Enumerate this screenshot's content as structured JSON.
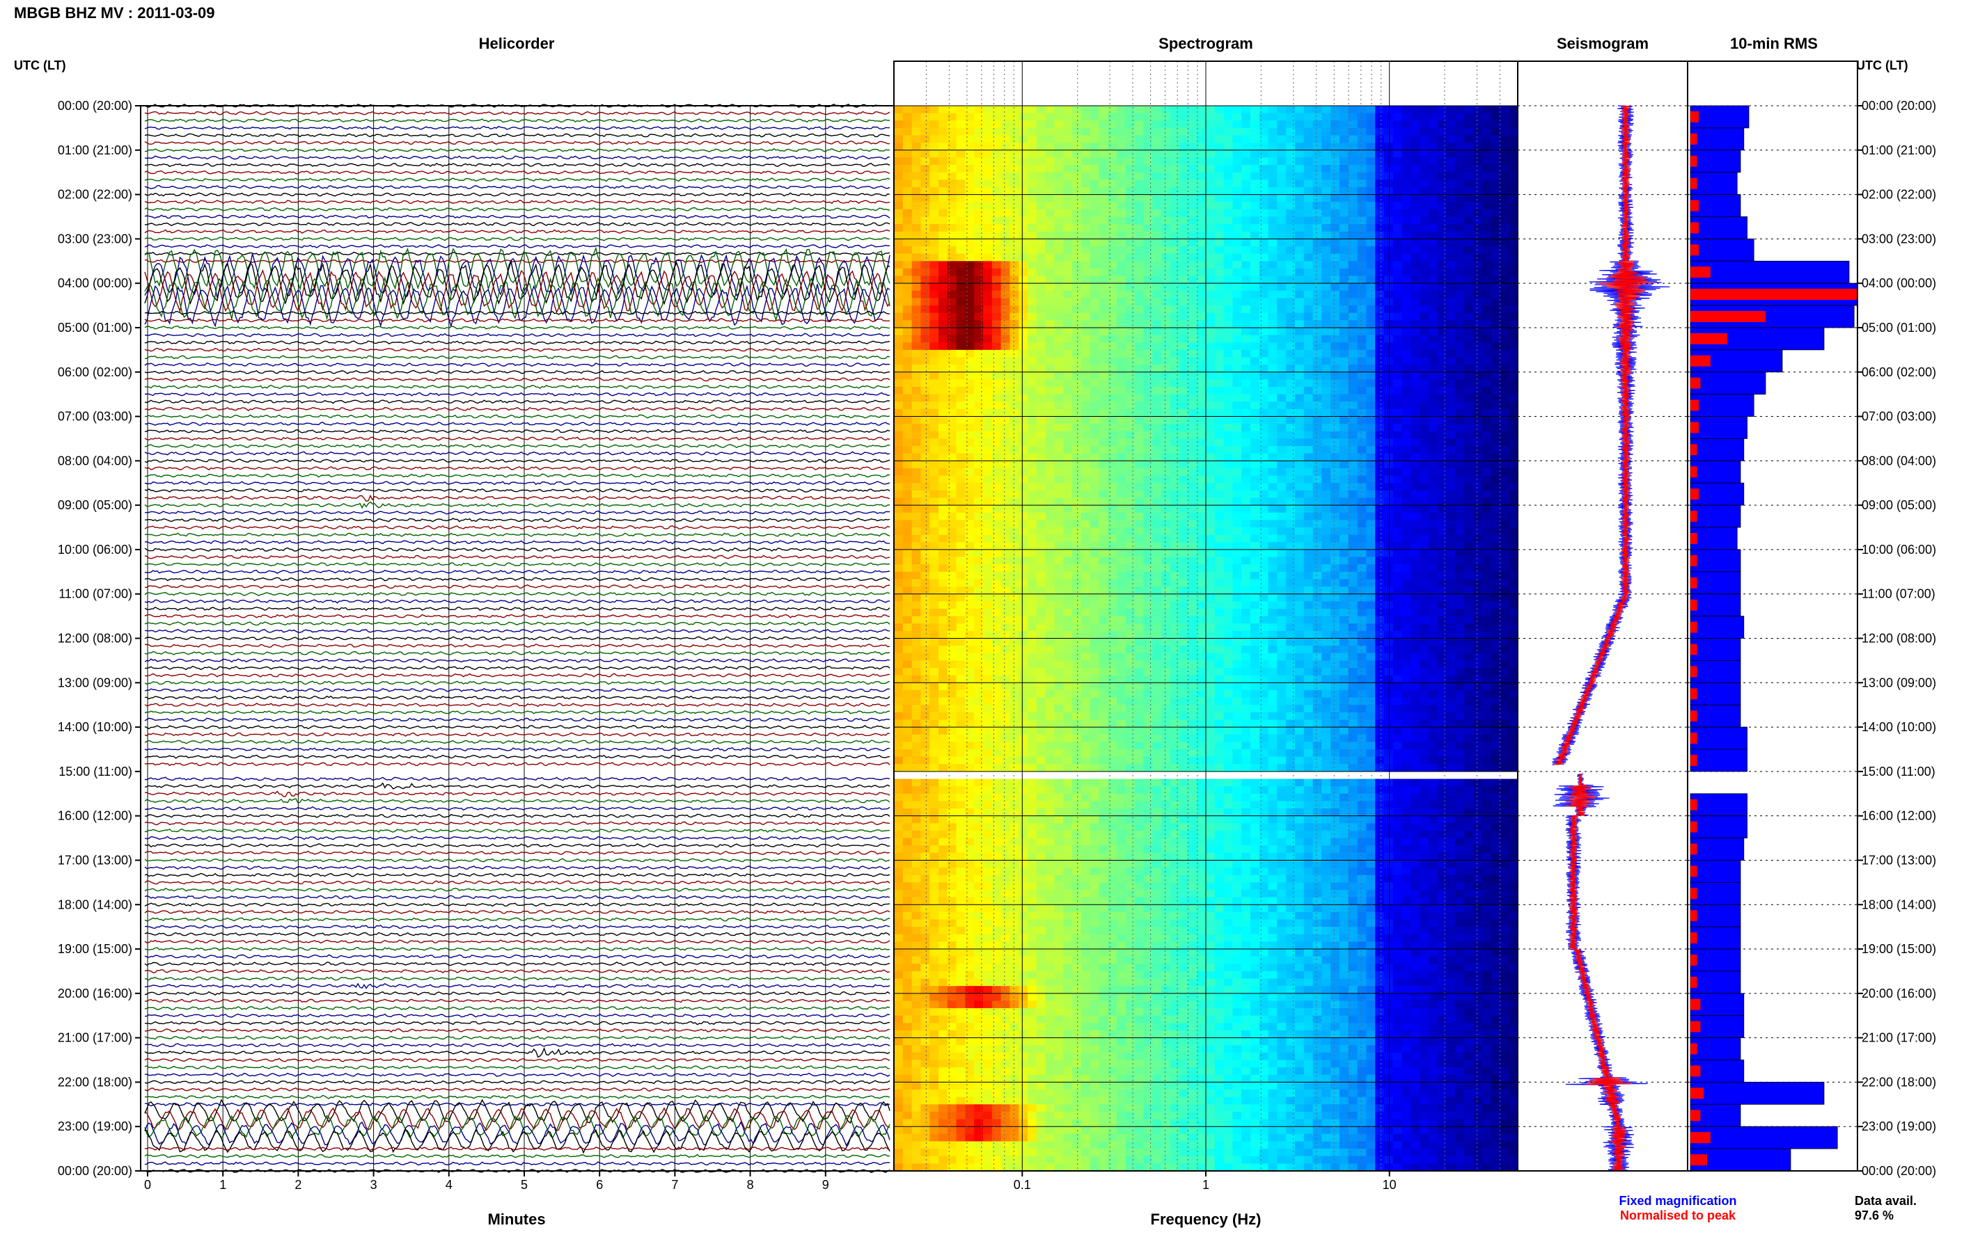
{
  "figure": {
    "title": "MBGB BHZ MV : 2011-03-09",
    "utc_label_left": "UTC (LT)",
    "utc_label_right": "UTC (LT)",
    "panels": {
      "helicorder": "Helicorder",
      "spectrogram": "Spectrogram",
      "seismogram": "Seismogram",
      "rms": "10-min RMS"
    },
    "xlabels": {
      "helicorder": "Minutes",
      "spectrogram": "Frequency (Hz)"
    },
    "legend": {
      "fixed": "Fixed magnification",
      "normalised": "Normalised to peak"
    },
    "data_avail_label": "Data avail.",
    "data_avail_value": "97.6 %",
    "colors": {
      "helicorder_traces": [
        "#000000",
        "#8b0000",
        "#006400",
        "#00008b"
      ],
      "fixed": "#0000ff",
      "normalised": "#ff0000",
      "gap": "#ffffff"
    }
  },
  "chart_data": [
    {
      "type": "line",
      "name": "Helicorder",
      "xlabel": "Minutes",
      "x_ticks": [
        "0",
        "1",
        "2",
        "3",
        "4",
        "5",
        "6",
        "7",
        "8",
        "9"
      ],
      "xlim": [
        0,
        10
      ],
      "y_ticks": [
        "00:00 (20:00)",
        "01:00 (21:00)",
        "02:00 (22:00)",
        "03:00 (23:00)",
        "04:00 (00:00)",
        "05:00 (01:00)",
        "06:00 (02:00)",
        "07:00 (03:00)",
        "08:00 (04:00)",
        "09:00 (05:00)",
        "10:00 (06:00)",
        "11:00 (07:00)",
        "12:00 (08:00)",
        "13:00 (09:00)",
        "14:00 (10:00)",
        "15:00 (11:00)",
        "16:00 (12:00)",
        "17:00 (13:00)",
        "18:00 (14:00)",
        "19:00 (15:00)",
        "20:00 (16:00)",
        "21:00 (17:00)",
        "22:00 (18:00)",
        "23:00 (19:00)",
        "00:00 (20:00)"
      ],
      "lines_per_hour": 6,
      "events": [
        {
          "hour": 3.6,
          "duration_h": 1.0,
          "level": "strong"
        },
        {
          "hour": 8.9,
          "minute": 2.9,
          "level": "small"
        },
        {
          "hour": 15.3,
          "minute": 3.2,
          "level": "small"
        },
        {
          "hour": 15.6,
          "minute": 1.8,
          "level": "small"
        },
        {
          "hour": 19.9,
          "minute": 2.8,
          "level": "small"
        },
        {
          "hour": 21.4,
          "minute": 5.2,
          "level": "moderate"
        },
        {
          "hour": 22.6,
          "duration_h": 0.8,
          "level": "moderate"
        }
      ],
      "gaps": [
        {
          "hour_start": 14.85,
          "hour_end": 15.05
        }
      ]
    },
    {
      "type": "heatmap",
      "name": "Spectrogram",
      "xlabel": "Frequency (Hz)",
      "x_scale": "log",
      "xlim": [
        0.02,
        50
      ],
      "x_ticks": [
        "0.1",
        "1",
        "10"
      ],
      "colormap": "jet",
      "hot_spots": [
        {
          "hour_start": 3.4,
          "hour_end": 5.4,
          "freq_hz": 0.05,
          "intensity": "max"
        },
        {
          "hour_start": 19.7,
          "hour_end": 20.3,
          "freq_hz": 0.06,
          "intensity": "high"
        },
        {
          "hour_start": 22.5,
          "hour_end": 23.2,
          "freq_hz": 0.06,
          "intensity": "high"
        }
      ]
    },
    {
      "type": "line",
      "name": "Seismogram",
      "series": [
        {
          "name": "Fixed magnification",
          "color": "#0000ff"
        },
        {
          "name": "Normalised to peak",
          "color": "#ff0000"
        }
      ]
    },
    {
      "type": "bar",
      "name": "10-min RMS",
      "orientation": "horizontal",
      "series": [
        {
          "name": "Fixed magnification",
          "color": "#0000ff"
        },
        {
          "name": "Normalised to peak",
          "color": "#ff0000"
        }
      ],
      "hours": [
        0,
        0.5,
        1,
        1.5,
        2,
        2.5,
        3,
        3.5,
        4,
        4.5,
        5,
        5.5,
        6,
        6.5,
        7,
        7.5,
        8,
        8.5,
        9,
        9.5,
        10,
        10.5,
        11,
        11.5,
        12,
        12.5,
        13,
        13.5,
        14,
        14.5,
        15,
        15.5,
        16,
        16.5,
        17,
        17.5,
        18,
        18.5,
        19,
        19.5,
        20,
        20.5,
        21,
        21.5,
        22,
        22.5,
        23,
        23.5
      ],
      "fixed_values": [
        0.35,
        0.32,
        0.3,
        0.28,
        0.3,
        0.34,
        0.38,
        0.95,
        1.0,
        0.98,
        0.8,
        0.55,
        0.45,
        0.38,
        0.34,
        0.32,
        0.3,
        0.32,
        0.3,
        0.28,
        0.3,
        0.3,
        0.3,
        0.32,
        0.3,
        0.3,
        0.3,
        0.3,
        0.34,
        0.34,
        0.0,
        0.34,
        0.34,
        0.32,
        0.3,
        0.3,
        0.3,
        0.3,
        0.3,
        0.3,
        0.32,
        0.32,
        0.3,
        0.32,
        0.8,
        0.3,
        0.88,
        0.6
      ],
      "normalised_values": [
        0.05,
        0.04,
        0.04,
        0.04,
        0.05,
        0.05,
        0.05,
        0.12,
        1.0,
        0.45,
        0.22,
        0.12,
        0.06,
        0.05,
        0.05,
        0.04,
        0.04,
        0.05,
        0.04,
        0.04,
        0.04,
        0.04,
        0.04,
        0.04,
        0.04,
        0.04,
        0.04,
        0.04,
        0.04,
        0.04,
        0.0,
        0.04,
        0.04,
        0.04,
        0.04,
        0.04,
        0.04,
        0.04,
        0.04,
        0.04,
        0.06,
        0.06,
        0.04,
        0.06,
        0.08,
        0.06,
        0.12,
        0.1
      ]
    }
  ]
}
